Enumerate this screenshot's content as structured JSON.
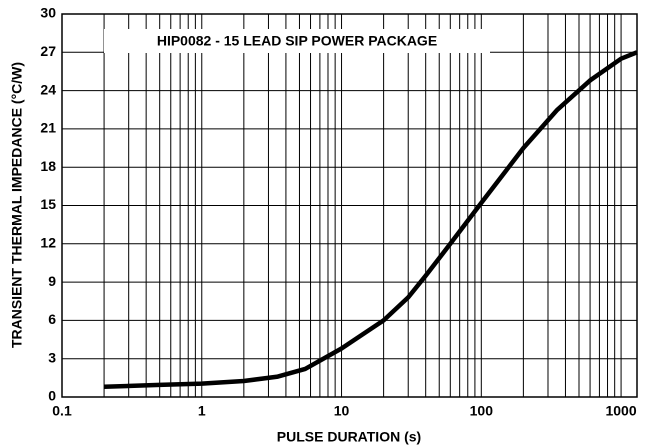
{
  "chart_data": {
    "type": "line",
    "annotation": "HIP0082 - 15 LEAD SIP POWER PACKAGE",
    "xlabel": "PULSE DURATION (s)",
    "ylabel": "TRANSIENT THERMAL IMPEDANCE (°C/W)",
    "x": [
      0.2,
      0.5,
      1,
      2,
      3.5,
      5.5,
      10,
      20,
      30,
      40,
      60,
      100,
      200,
      350,
      600,
      1000,
      1300
    ],
    "values": [
      0.8,
      0.95,
      1.05,
      1.25,
      1.6,
      2.2,
      3.8,
      6,
      7.8,
      9.5,
      12,
      15.2,
      19.5,
      22.5,
      24.8,
      26.5,
      27
    ],
    "color": "#000000",
    "xscale": "log",
    "xlim": [
      0.1,
      1300
    ],
    "xticks": [
      0.1,
      1,
      10,
      100,
      1000
    ],
    "xminorticks": [
      0.2,
      0.3,
      0.4,
      0.5,
      0.6,
      0.7,
      0.8,
      0.9,
      2,
      3,
      4,
      5,
      6,
      7,
      8,
      9,
      20,
      30,
      40,
      50,
      60,
      70,
      80,
      90,
      200,
      300,
      400,
      500,
      600,
      700,
      800,
      900
    ],
    "ylim": [
      0,
      30
    ],
    "yticks": [
      0,
      3,
      6,
      9,
      12,
      15,
      18,
      21,
      24,
      27,
      30
    ],
    "grid": true
  }
}
